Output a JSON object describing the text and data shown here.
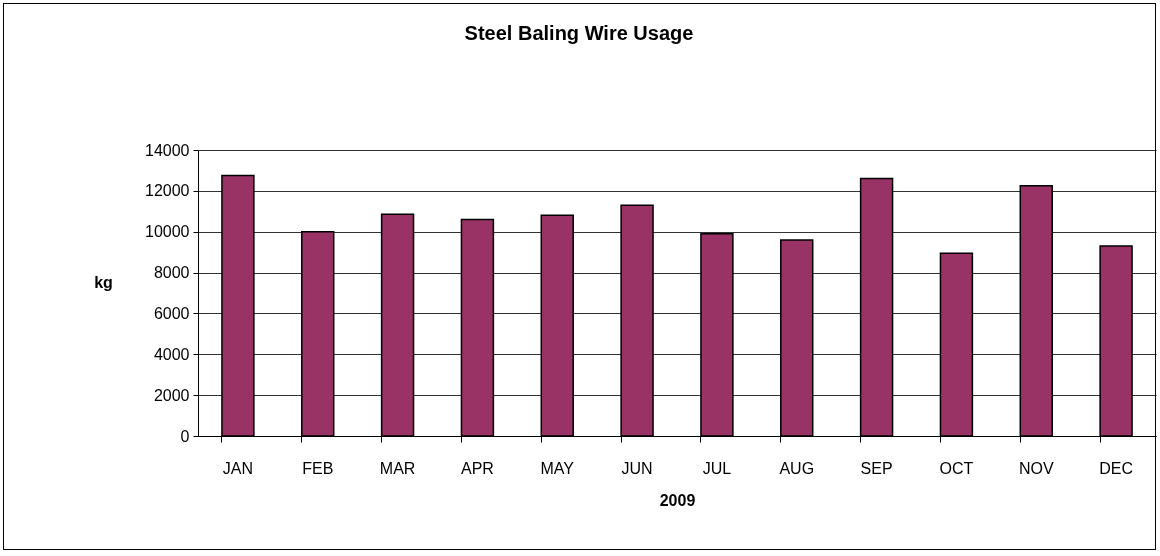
{
  "chart_data": {
    "type": "bar",
    "title": "Steel Baling Wire Usage",
    "xlabel": "2009",
    "ylabel": "kg",
    "categories": [
      "JAN",
      "FEB",
      "MAR",
      "APR",
      "MAY",
      "JUN",
      "JUL",
      "AUG",
      "SEP",
      "OCT",
      "NOV",
      "DEC"
    ],
    "values": [
      12750,
      10000,
      10850,
      10600,
      10800,
      11300,
      9900,
      9600,
      12600,
      8950,
      12250,
      9300
    ],
    "color": "#993366",
    "ylim": [
      0,
      14000
    ],
    "yticks": [
      0,
      2000,
      4000,
      6000,
      8000,
      10000,
      12000,
      14000
    ],
    "grid": "y"
  }
}
